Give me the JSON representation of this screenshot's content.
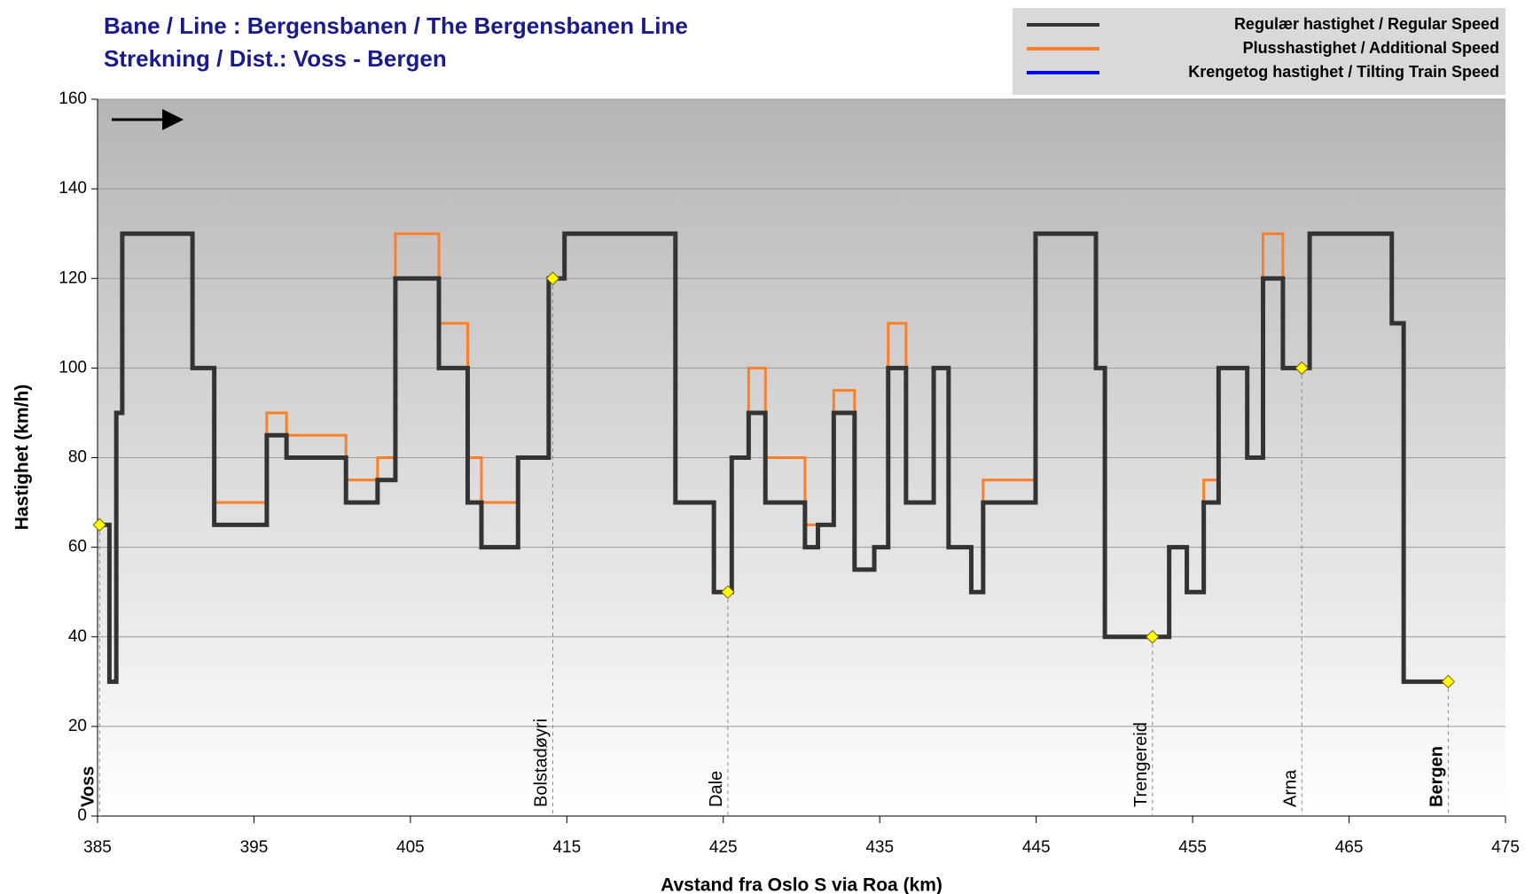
{
  "chart_data": {
    "type": "line",
    "title": "Bane / Line : Bergensbanen / The Bergensbanen Line",
    "subtitle": "Strekning / Dist.: Voss - Bergen",
    "x_label": "Avstand fra Oslo S via Roa (km)",
    "y_label": "Hastighet (km/h)",
    "xlim": [
      385,
      475
    ],
    "xticks": [
      385,
      395,
      405,
      415,
      425,
      435,
      445,
      455,
      465,
      475
    ],
    "ylim": [
      0,
      160
    ],
    "yticks": [
      0,
      20,
      40,
      60,
      80,
      100,
      120,
      140,
      160
    ],
    "grid": true,
    "legend": "top-right",
    "series": [
      {
        "name": "Krengetog hastighet / Tilting Train Speed",
        "color": "#0000ff",
        "x": [],
        "values": []
      },
      {
        "name": "Plusshastighet / Additional Speed",
        "color": "#ff7f27",
        "x": [
          385.13,
          385.76,
          385.76,
          386.2,
          386.2,
          386.58,
          386.58,
          391.07,
          391.07,
          392.46,
          392.46,
          395.82,
          395.82,
          397.08,
          397.08,
          400.88,
          400.88,
          402.9,
          402.9,
          404.04,
          404.04,
          406.82,
          406.82,
          408.66,
          408.66,
          409.54,
          409.54,
          411.88,
          411.88,
          413.84,
          413.84,
          414.85,
          414.85,
          421.94,
          421.94,
          424.4,
          424.4,
          425.54,
          425.54,
          426.62,
          426.62,
          427.69,
          427.69,
          430.22,
          430.22,
          431.05,
          431.05,
          432.06,
          432.06,
          433.39,
          433.39,
          434.65,
          434.65,
          435.54,
          435.54,
          436.68,
          436.68,
          438.45,
          438.45,
          439.4,
          439.4,
          440.85,
          440.85,
          441.61,
          441.61,
          444.96,
          444.96,
          448.82,
          448.82,
          449.39,
          449.39,
          453.5,
          453.5,
          454.63,
          454.63,
          455.71,
          455.71,
          456.66,
          456.66,
          458.49,
          458.49,
          459.5,
          459.5,
          460.77,
          460.77,
          462.48,
          462.48,
          467.73,
          467.73,
          468.49,
          468.49,
          471.34
        ],
        "values": [
          65,
          65,
          30,
          30,
          90,
          90,
          130,
          130,
          100,
          100,
          70,
          70,
          90,
          90,
          85,
          85,
          75,
          75,
          80,
          80,
          130,
          130,
          110,
          110,
          80,
          80,
          70,
          70,
          80,
          80,
          120,
          120,
          130,
          130,
          70,
          70,
          50,
          50,
          80,
          80,
          100,
          100,
          80,
          80,
          65,
          65,
          65,
          65,
          95,
          95,
          55,
          55,
          60,
          60,
          110,
          110,
          70,
          70,
          100,
          100,
          60,
          60,
          50,
          50,
          75,
          75,
          130,
          130,
          100,
          100,
          40,
          40,
          60,
          60,
          50,
          50,
          75,
          75,
          100,
          100,
          80,
          80,
          130,
          130,
          100,
          100,
          130,
          130,
          110,
          110,
          30,
          30
        ]
      },
      {
        "name": "Regulær hastighet / Regular Speed",
        "color": "#333333",
        "x": [
          385.13,
          385.76,
          385.76,
          386.2,
          386.2,
          386.58,
          386.58,
          391.07,
          391.07,
          392.46,
          392.46,
          395.82,
          395.82,
          397.08,
          397.08,
          400.88,
          400.88,
          402.9,
          402.9,
          404.04,
          404.04,
          406.82,
          406.82,
          408.66,
          408.66,
          409.54,
          409.54,
          411.88,
          411.88,
          413.84,
          413.84,
          414.85,
          414.85,
          421.94,
          421.94,
          424.4,
          424.4,
          425.54,
          425.54,
          426.62,
          426.62,
          427.69,
          427.69,
          430.22,
          430.22,
          431.05,
          431.05,
          432.06,
          432.06,
          433.39,
          433.39,
          434.65,
          434.65,
          435.54,
          435.54,
          436.68,
          436.68,
          438.45,
          438.45,
          439.4,
          439.4,
          440.85,
          440.85,
          441.61,
          441.61,
          444.96,
          444.96,
          448.82,
          448.82,
          449.39,
          449.39,
          453.5,
          453.5,
          454.63,
          454.63,
          455.71,
          455.71,
          456.66,
          456.66,
          458.49,
          458.49,
          459.5,
          459.5,
          460.77,
          460.77,
          462.48,
          462.48,
          467.73,
          467.73,
          468.49,
          468.49,
          471.34
        ],
        "values": [
          65,
          65,
          30,
          30,
          90,
          90,
          130,
          130,
          100,
          100,
          65,
          65,
          85,
          85,
          80,
          80,
          70,
          70,
          75,
          75,
          120,
          120,
          100,
          100,
          70,
          70,
          60,
          60,
          80,
          80,
          120,
          120,
          130,
          130,
          70,
          70,
          50,
          50,
          80,
          80,
          90,
          90,
          70,
          70,
          60,
          60,
          65,
          65,
          90,
          90,
          55,
          55,
          60,
          60,
          100,
          100,
          70,
          70,
          100,
          100,
          60,
          60,
          50,
          50,
          70,
          70,
          130,
          130,
          100,
          100,
          40,
          40,
          60,
          60,
          50,
          50,
          70,
          70,
          100,
          100,
          80,
          80,
          120,
          120,
          100,
          100,
          130,
          130,
          110,
          110,
          30,
          30
        ]
      }
    ],
    "stations": [
      {
        "name": "Voss",
        "x": 385.13,
        "y": 65,
        "bold": true
      },
      {
        "name": "Bolstadøyri",
        "x": 414.1,
        "y": 120,
        "bold": false
      },
      {
        "name": "Dale",
        "x": 425.29,
        "y": 50,
        "bold": false
      },
      {
        "name": "Trengereid",
        "x": 452.43,
        "y": 40,
        "bold": false
      },
      {
        "name": "Arna",
        "x": 461.98,
        "y": 100,
        "bold": false
      },
      {
        "name": "Bergen",
        "x": 471.34,
        "y": 30,
        "bold": true
      }
    ]
  }
}
